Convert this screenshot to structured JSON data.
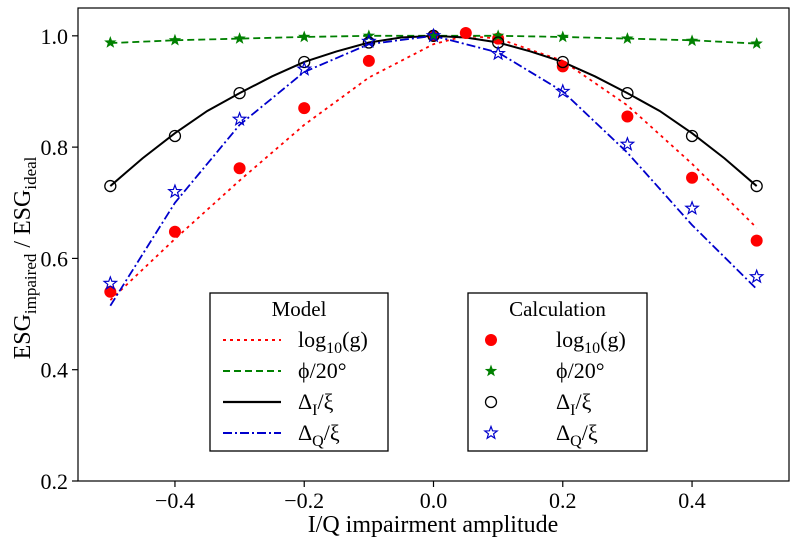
{
  "chart_data": {
    "type": "line",
    "title": "",
    "xlabel": "I/Q impairment amplitude",
    "ylabel": {
      "base1": "ESG",
      "sub1": "impaired",
      "sep": " / ",
      "base2": "ESG",
      "sub2": "ideal"
    },
    "xlim": [
      -0.55,
      0.55
    ],
    "ylim": [
      0.2,
      1.05
    ],
    "xticks": [
      -0.4,
      -0.2,
      0.0,
      0.2,
      0.4
    ],
    "xtick_labels": [
      "−0.4",
      "−0.2",
      "0.0",
      "0.2",
      "0.4"
    ],
    "yticks": [
      0.2,
      0.4,
      0.6,
      0.8,
      1.0
    ],
    "ytick_labels": [
      "0.2",
      "0.4",
      "0.6",
      "0.8",
      "1.0"
    ],
    "grid": false,
    "model_series": [
      {
        "name": "log10(g)",
        "label": {
          "base": "log",
          "sub": "10",
          "rest": "(g)"
        },
        "color": "#ff0000",
        "dash": "dotted",
        "x": [
          -0.5,
          -0.4,
          -0.3,
          -0.2,
          -0.1,
          0.0,
          0.05,
          0.1,
          0.2,
          0.3,
          0.4,
          0.5
        ],
        "y": [
          0.525,
          0.635,
          0.74,
          0.84,
          0.925,
          0.985,
          1.0,
          0.995,
          0.955,
          0.875,
          0.77,
          0.655
        ]
      },
      {
        "name": "ϕ/20°",
        "label": {
          "text": "ϕ/20°"
        },
        "color": "#008000",
        "dash": "dashed",
        "x": [
          -0.5,
          -0.4,
          -0.3,
          -0.2,
          -0.1,
          0.0,
          0.1,
          0.2,
          0.3,
          0.4,
          0.5
        ],
        "y": [
          0.987,
          0.992,
          0.995,
          0.998,
          1.0,
          1.0,
          1.0,
          0.998,
          0.995,
          0.992,
          0.986
        ]
      },
      {
        "name": "ΔI/ξ",
        "label": {
          "base": "Δ",
          "sub": "I",
          "rest": "/ξ"
        },
        "color": "#000000",
        "dash": "solid",
        "x": [
          -0.5,
          -0.45,
          -0.4,
          -0.35,
          -0.3,
          -0.25,
          -0.2,
          -0.15,
          -0.1,
          -0.05,
          0.0,
          0.05,
          0.1,
          0.15,
          0.2,
          0.25,
          0.3,
          0.35,
          0.4,
          0.45,
          0.5
        ],
        "y": [
          0.73,
          0.78,
          0.825,
          0.865,
          0.897,
          0.927,
          0.953,
          0.972,
          0.988,
          0.997,
          1.0,
          0.997,
          0.988,
          0.972,
          0.953,
          0.927,
          0.897,
          0.865,
          0.825,
          0.78,
          0.73
        ]
      },
      {
        "name": "ΔQ/ξ",
        "label": {
          "base": "Δ",
          "sub": "Q",
          "rest": "/ξ"
        },
        "color": "#0000cc",
        "dash": "dashdot",
        "x": [
          -0.5,
          -0.4,
          -0.3,
          -0.2,
          -0.1,
          0.0,
          0.1,
          0.2,
          0.3,
          0.4,
          0.5
        ],
        "y": [
          0.515,
          0.7,
          0.84,
          0.935,
          0.985,
          1.0,
          0.97,
          0.9,
          0.79,
          0.66,
          0.545
        ]
      }
    ],
    "calculation_series": [
      {
        "name": "log10(g)",
        "label": {
          "base": "log",
          "sub": "10",
          "rest": "(g)"
        },
        "color": "#ff0000",
        "marker": "filled-circle",
        "x": [
          -0.5,
          -0.4,
          -0.3,
          -0.2,
          -0.1,
          0.0,
          0.05,
          0.1,
          0.2,
          0.3,
          0.4,
          0.5
        ],
        "y": [
          0.54,
          0.648,
          0.762,
          0.87,
          0.955,
          1.0,
          1.005,
          0.995,
          0.945,
          0.855,
          0.745,
          0.632
        ]
      },
      {
        "name": "ϕ/20°",
        "label": {
          "text": "ϕ/20°"
        },
        "color": "#008000",
        "marker": "star",
        "x": [
          -0.5,
          -0.4,
          -0.3,
          -0.2,
          -0.1,
          0.0,
          0.1,
          0.2,
          0.3,
          0.4,
          0.5
        ],
        "y": [
          0.988,
          0.992,
          0.995,
          0.998,
          1.0,
          1.0,
          1.0,
          0.998,
          0.995,
          0.991,
          0.986
        ]
      },
      {
        "name": "ΔI/ξ",
        "label": {
          "base": "Δ",
          "sub": "I",
          "rest": "/ξ"
        },
        "color": "#000000",
        "marker": "open-circle",
        "x": [
          -0.5,
          -0.4,
          -0.3,
          -0.2,
          -0.1,
          0.0,
          0.1,
          0.2,
          0.3,
          0.4,
          0.5
        ],
        "y": [
          0.73,
          0.82,
          0.897,
          0.953,
          0.988,
          1.0,
          0.988,
          0.953,
          0.897,
          0.82,
          0.73
        ]
      },
      {
        "name": "ΔQ/ξ",
        "label": {
          "base": "Δ",
          "sub": "Q",
          "rest": "/ξ"
        },
        "color": "#0000cc",
        "marker": "open-star",
        "x": [
          -0.5,
          -0.4,
          -0.3,
          -0.2,
          -0.1,
          0.0,
          0.1,
          0.2,
          0.3,
          0.4,
          0.5
        ],
        "y": [
          0.555,
          0.72,
          0.85,
          0.94,
          0.99,
          1.0,
          0.968,
          0.9,
          0.805,
          0.69,
          0.567
        ]
      }
    ],
    "legends": [
      {
        "title": "Model",
        "position": "bottom-left",
        "source": "model_series"
      },
      {
        "title": "Calculation",
        "position": "bottom-center-right",
        "source": "calculation_series"
      }
    ]
  }
}
